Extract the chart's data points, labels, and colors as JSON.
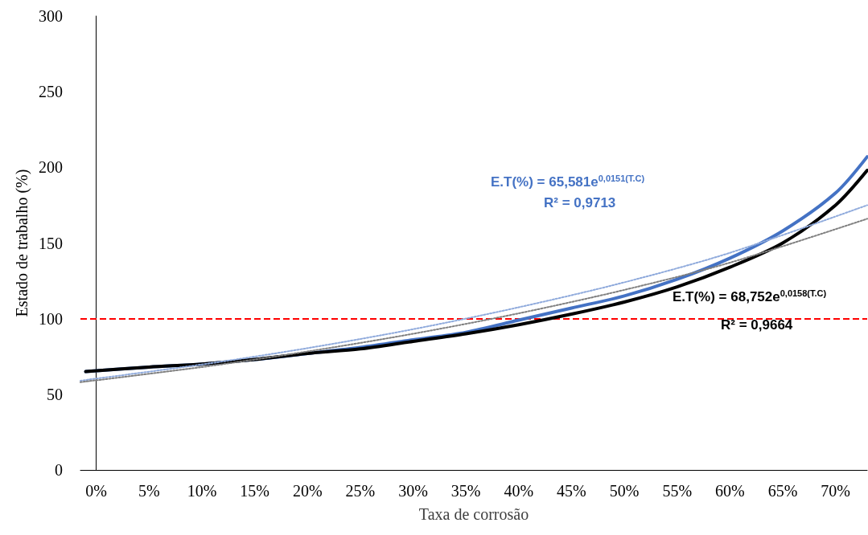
{
  "chart_data": {
    "type": "line",
    "xlabel": "Taxa de corrosão",
    "ylabel": "Estado de trabalho (%)",
    "xlim": [
      -1.5,
      73
    ],
    "xticks": [
      {
        "value": 0,
        "label": "0%"
      },
      {
        "value": 5,
        "label": "5%"
      },
      {
        "value": 10,
        "label": "10%"
      },
      {
        "value": 15,
        "label": "15%"
      },
      {
        "value": 20,
        "label": "20%"
      },
      {
        "value": 25,
        "label": "25%"
      },
      {
        "value": 30,
        "label": "30%"
      },
      {
        "value": 35,
        "label": "35%"
      },
      {
        "value": 40,
        "label": "40%"
      },
      {
        "value": 45,
        "label": "45%"
      },
      {
        "value": 50,
        "label": "50%"
      },
      {
        "value": 55,
        "label": "55%"
      },
      {
        "value": 60,
        "label": "60%"
      },
      {
        "value": 65,
        "label": "65%"
      },
      {
        "value": 70,
        "label": "70%"
      }
    ],
    "ylim": [
      0,
      300
    ],
    "yticks": [
      0,
      50,
      100,
      150,
      200,
      250,
      300
    ],
    "grid": false,
    "marker": "none",
    "series": [
      {
        "color": "#4472c4",
        "line_style": "solid",
        "x": [
          -1,
          5,
          10,
          15,
          20,
          25,
          30,
          35,
          40,
          45,
          50,
          55,
          60,
          65,
          70,
          73
        ],
        "values": [
          65,
          68,
          70,
          73,
          77,
          81,
          86,
          91,
          99,
          107,
          115,
          126,
          140,
          158,
          183,
          207
        ]
      },
      {
        "color": "#000000",
        "line_style": "solid",
        "x": [
          -1,
          5,
          10,
          15,
          20,
          25,
          30,
          35,
          40,
          45,
          50,
          55,
          60,
          65,
          70,
          73
        ],
        "values": [
          65,
          68,
          70,
          73,
          77,
          80,
          85,
          90,
          96,
          103,
          111,
          121,
          134,
          150,
          175,
          198
        ]
      },
      {
        "color": "#8faadc",
        "line_style": "dotted",
        "x": [
          -1.5,
          10,
          20,
          30,
          40,
          50,
          60,
          73
        ],
        "values": [
          59,
          69.7,
          80.5,
          93,
          107.5,
          124,
          143.5,
          175
        ]
      },
      {
        "color": "#7f7f7f",
        "line_style": "dotted",
        "x": [
          -1.5,
          10,
          20,
          30,
          40,
          50,
          60,
          73
        ],
        "values": [
          58,
          68,
          78.3,
          90,
          103.5,
          119,
          137,
          166
        ]
      }
    ],
    "ref_lines": [
      {
        "axis": "y",
        "value": 100,
        "color": "#ff0000",
        "line_style": "dashed"
      }
    ],
    "annotations": [
      "E.T(%) = 65,581e$^{0,0151(T.C)}$",
      "R² = 0,9713",
      "E.T(%) = 68,752e$^{0,0158(T.C)}$",
      "R² = 0,9664"
    ]
  }
}
